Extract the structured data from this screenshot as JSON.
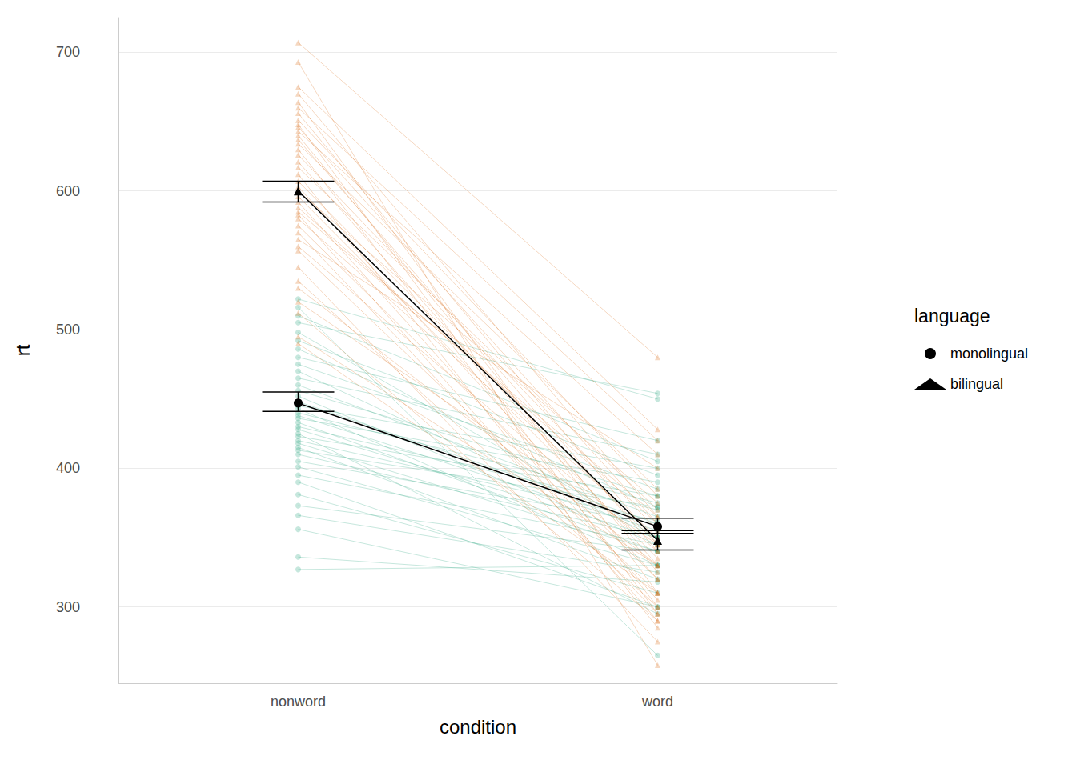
{
  "chart_data": {
    "type": "line",
    "x_label": "condition",
    "y_label": "rt",
    "legend_title": "language",
    "legend": "right",
    "grid": true,
    "categories": [
      "nonword",
      "word"
    ],
    "ylim": [
      245,
      725
    ],
    "yticks": [
      300,
      400,
      500,
      600,
      700
    ],
    "series": [
      {
        "name": "monolingual",
        "color": "#1b9e77",
        "marker": "circle",
        "values": [
          447,
          358
        ],
        "error_bars": [
          [
            441,
            455
          ],
          [
            353,
            364
          ]
        ],
        "subjects": [
          [
            327,
            330
          ],
          [
            336,
            318
          ],
          [
            356,
            300
          ],
          [
            366,
            325
          ],
          [
            373,
            340
          ],
          [
            381,
            310
          ],
          [
            390,
            300
          ],
          [
            395,
            345
          ],
          [
            401,
            330
          ],
          [
            405,
            360
          ],
          [
            410,
            350
          ],
          [
            413,
            372
          ],
          [
            415,
            320
          ],
          [
            418,
            340
          ],
          [
            420,
            362
          ],
          [
            423,
            380
          ],
          [
            425,
            295
          ],
          [
            428,
            350
          ],
          [
            430,
            370
          ],
          [
            433,
            340
          ],
          [
            436,
            390
          ],
          [
            438,
            355
          ],
          [
            440,
            375
          ],
          [
            443,
            330
          ],
          [
            445,
            400
          ],
          [
            448,
            360
          ],
          [
            452,
            345
          ],
          [
            456,
            380
          ],
          [
            460,
            365
          ],
          [
            465,
            410
          ],
          [
            470,
            350
          ],
          [
            475,
            385
          ],
          [
            480,
            420
          ],
          [
            486,
            372
          ],
          [
            492,
            395
          ],
          [
            498,
            350
          ],
          [
            505,
            454
          ],
          [
            510,
            405
          ],
          [
            516,
            265
          ],
          [
            522,
            450
          ]
        ]
      },
      {
        "name": "bilingual",
        "color": "#d95f02",
        "marker": "triangle",
        "values": [
          600,
          348
        ],
        "error_bars": [
          [
            592,
            607
          ],
          [
            341,
            355
          ]
        ],
        "subjects": [
          [
            490,
            310
          ],
          [
            495,
            330
          ],
          [
            512,
            290
          ],
          [
            520,
            345
          ],
          [
            530,
            330
          ],
          [
            535,
            300
          ],
          [
            545,
            275
          ],
          [
            557,
            310
          ],
          [
            560,
            340
          ],
          [
            565,
            400
          ],
          [
            570,
            295
          ],
          [
            575,
            320
          ],
          [
            580,
            350
          ],
          [
            583,
            290
          ],
          [
            585,
            365
          ],
          [
            588,
            360
          ],
          [
            592,
            305
          ],
          [
            596,
            335
          ],
          [
            600,
            375
          ],
          [
            603,
            320
          ],
          [
            607,
            345
          ],
          [
            612,
            285
          ],
          [
            617,
            370
          ],
          [
            621,
            330
          ],
          [
            626,
            355
          ],
          [
            630,
            300
          ],
          [
            634,
            385
          ],
          [
            637,
            340
          ],
          [
            640,
            325
          ],
          [
            643,
            410
          ],
          [
            646,
            360
          ],
          [
            648,
            295
          ],
          [
            651,
            380
          ],
          [
            656,
            345
          ],
          [
            660,
            420
          ],
          [
            664,
            310
          ],
          [
            670,
            365
          ],
          [
            675,
            428
          ],
          [
            693,
            258
          ],
          [
            707,
            480
          ]
        ]
      }
    ]
  }
}
